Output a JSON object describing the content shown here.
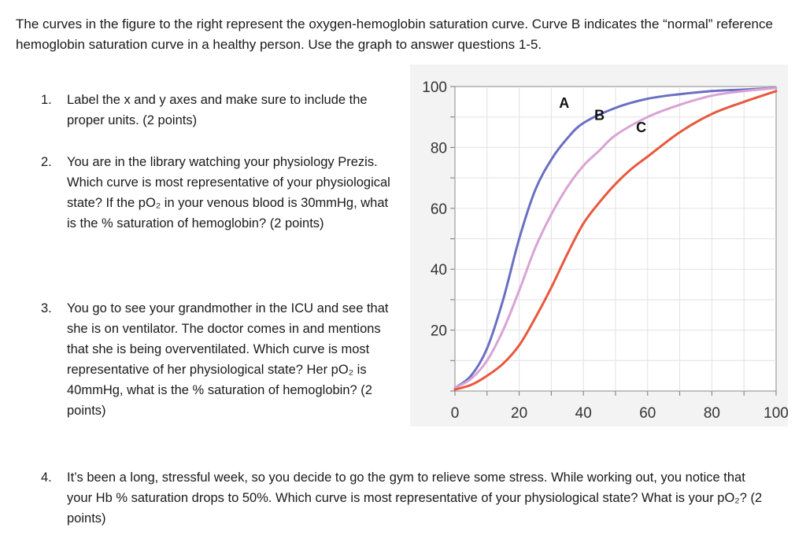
{
  "intro_text": "The curves in the figure to the right represent the oxygen-hemoglobin saturation curve. Curve B indicates the “normal” reference hemoglobin saturation curve in a healthy person. Use the graph to answer questions 1-5.",
  "questions": [
    {
      "number": "1.",
      "text": "Label the x and y axes and make sure to include the proper units. (2 points)"
    },
    {
      "number": "2.",
      "text": "You are in the library watching your physiology Prezis. Which curve is most representative of your physiological state? If the pO₂ in your venous blood is 30mmHg, what is the % saturation of hemoglobin? (2 points)"
    },
    {
      "number": "3.",
      "text": "You go to see your grandmother in the ICU and see that she is on ventilator. The doctor comes in and mentions that she is being overventilated. Which curve is most representative of her physiological state? Her pO₂ is 40mmHg, what is the % saturation of hemoglobin? (2 points)"
    },
    {
      "number": "4.",
      "text": "It’s been a long, stressful week, so you decide to go the gym to relieve some stress. While working out, you notice that your Hb % saturation drops to 50%. Which curve is most representative of your physiological state? What is your pO₂? (2 points)"
    }
  ],
  "chart_data": {
    "type": "line",
    "xlim": [
      0,
      100
    ],
    "ylim": [
      0,
      100
    ],
    "xticks": [
      "0",
      "20",
      "40",
      "60",
      "80",
      "100"
    ],
    "yticks": [
      "20",
      "40",
      "60",
      "80",
      "100"
    ],
    "grid": true,
    "xlabel": "",
    "ylabel": "",
    "series": [
      {
        "name": "A",
        "color": "#6a6fc2",
        "x": [
          0,
          5,
          10,
          15,
          20,
          25,
          30,
          35,
          40,
          50,
          60,
          70,
          80,
          90,
          100
        ],
        "y": [
          1,
          5,
          14,
          30,
          50,
          66,
          76,
          83,
          88,
          93,
          96,
          97.5,
          98.5,
          99,
          99.5
        ]
      },
      {
        "name": "B",
        "color": "#d9a3d4",
        "x": [
          0,
          5,
          10,
          15,
          20,
          25,
          30,
          35,
          40,
          45,
          50,
          60,
          70,
          80,
          90,
          100
        ],
        "y": [
          1,
          4,
          10,
          20,
          33,
          47,
          58,
          67,
          74,
          79,
          84,
          90,
          94,
          97,
          98.5,
          99.5
        ]
      },
      {
        "name": "C",
        "color": "#e8583d",
        "x": [
          0,
          5,
          10,
          15,
          20,
          25,
          30,
          35,
          40,
          45,
          50,
          55,
          60,
          70,
          80,
          90,
          100
        ],
        "y": [
          0.5,
          2,
          5,
          9,
          15,
          24,
          34,
          45,
          55,
          62,
          68,
          73,
          77,
          85,
          91,
          95,
          98.5
        ]
      }
    ]
  }
}
